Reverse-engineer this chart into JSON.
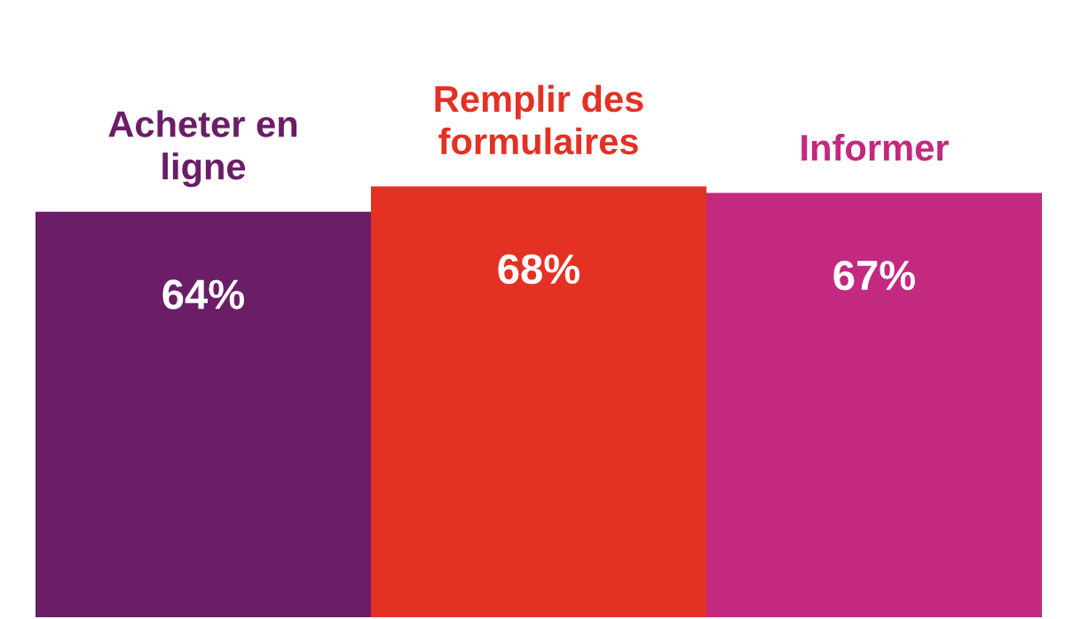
{
  "chart_data": {
    "type": "bar",
    "categories": [
      "Acheter en\nligne",
      "Remplir des\nformulaires",
      "Informer"
    ],
    "values": [
      64,
      68,
      67
    ],
    "colors": [
      "#6b1d67",
      "#e33124",
      "#c2297f"
    ],
    "value_labels": [
      "64%",
      "68%",
      "67%"
    ],
    "legend": false
  }
}
